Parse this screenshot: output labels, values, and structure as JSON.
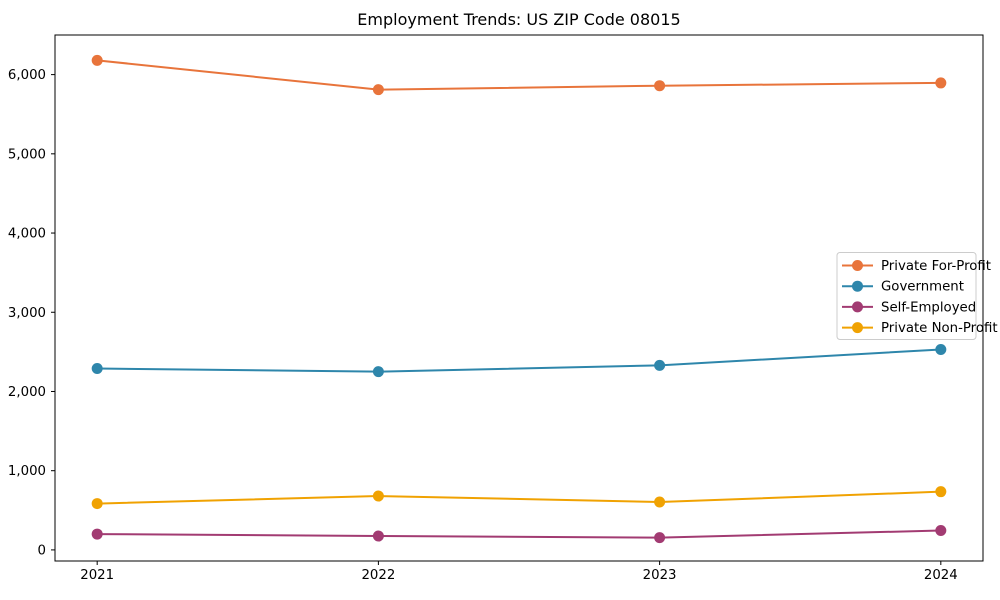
{
  "chart_data": {
    "type": "line",
    "title": "Employment Trends: US ZIP Code 08015",
    "xlabel": "",
    "ylabel": "",
    "categories": [
      "2021",
      "2022",
      "2023",
      "2024"
    ],
    "x": [
      2021,
      2022,
      2023,
      2024
    ],
    "series": [
      {
        "name": "Private For-Profit",
        "color": "#E8743B",
        "values": [
          6180,
          5810,
          5860,
          5895
        ]
      },
      {
        "name": "Government",
        "color": "#2E86AB",
        "values": [
          2290,
          2250,
          2330,
          2530
        ]
      },
      {
        "name": "Self-Employed",
        "color": "#A23B72",
        "values": [
          200,
          175,
          155,
          245
        ]
      },
      {
        "name": "Private Non-Profit",
        "color": "#F0A202",
        "values": [
          585,
          680,
          605,
          735
        ]
      }
    ],
    "yticks": [
      0,
      1000,
      2000,
      3000,
      4000,
      5000,
      6000
    ],
    "ytick_labels": [
      "0",
      "1,000",
      "2,000",
      "3,000",
      "4,000",
      "5,000",
      "6,000"
    ],
    "ylim": [
      -140,
      6500
    ],
    "xlim": [
      2020.85,
      2024.15
    ],
    "grid": false,
    "legend_position": "center right",
    "marker": "circle",
    "line_width": 2,
    "marker_radius": 5.5,
    "background_color": "#ffffff",
    "frame_color": "#000000",
    "legend_border_color": "#cccccc"
  }
}
